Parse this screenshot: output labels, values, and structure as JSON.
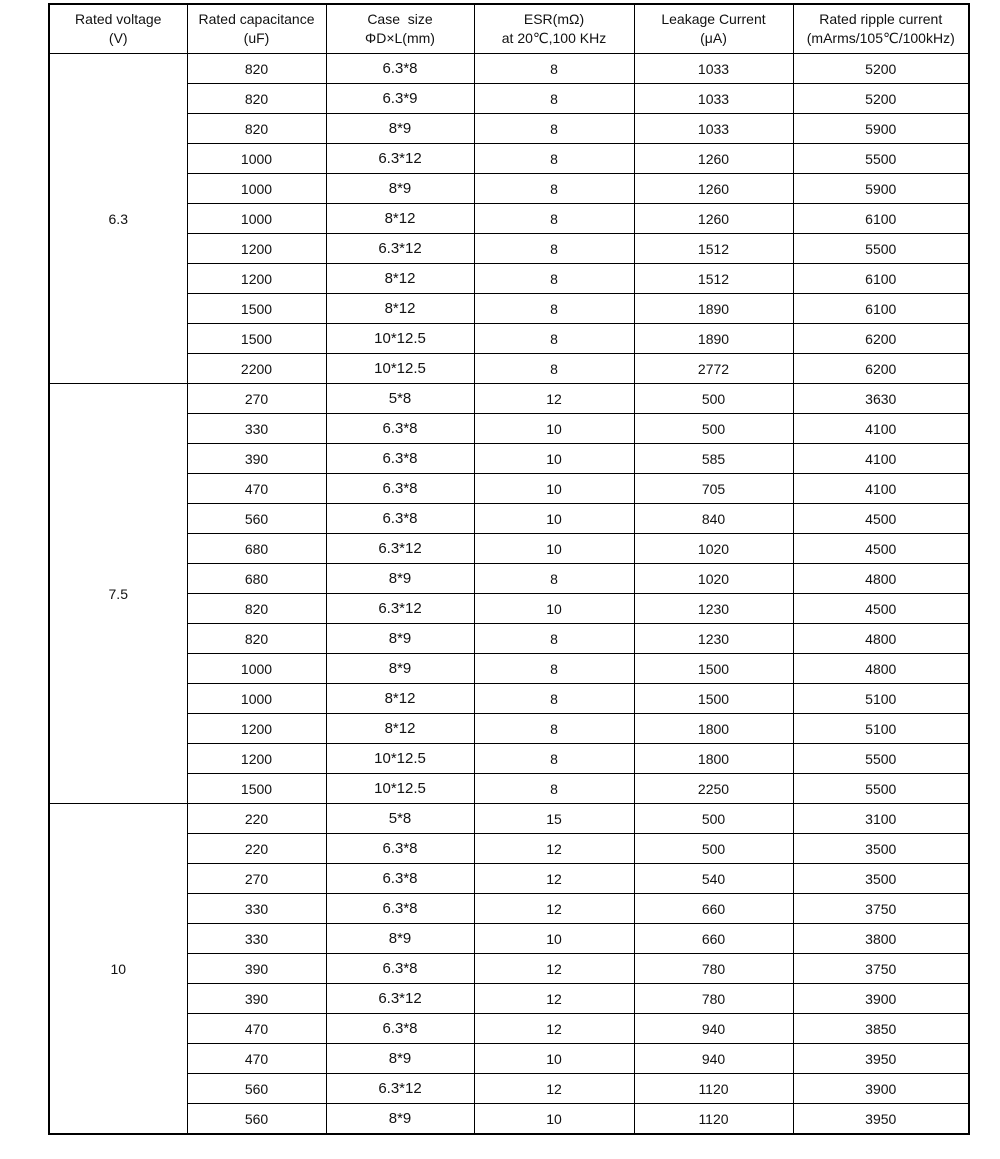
{
  "header": [
    [
      "Rated voltage",
      "(V)"
    ],
    [
      "Rated capacitance",
      "(uF)"
    ],
    [
      "Case  size",
      "ΦD×L(mm)"
    ],
    [
      "ESR(mΩ)",
      "at 20℃,100 KHz"
    ],
    [
      "Leakage Current",
      "(μA)"
    ],
    [
      "Rated ripple current",
      "(mArms/105℃/100kHz)"
    ]
  ],
  "groups": [
    {
      "voltage": "6.3",
      "rows": [
        [
          "820",
          "6.3*8",
          "8",
          "1033",
          "5200"
        ],
        [
          "820",
          "6.3*9",
          "8",
          "1033",
          "5200"
        ],
        [
          "820",
          "8*9",
          "8",
          "1033",
          "5900"
        ],
        [
          "1000",
          "6.3*12",
          "8",
          "1260",
          "5500"
        ],
        [
          "1000",
          "8*9",
          "8",
          "1260",
          "5900"
        ],
        [
          "1000",
          "8*12",
          "8",
          "1260",
          "6100"
        ],
        [
          "1200",
          "6.3*12",
          "8",
          "1512",
          "5500"
        ],
        [
          "1200",
          "8*12",
          "8",
          "1512",
          "6100"
        ],
        [
          "1500",
          "8*12",
          "8",
          "1890",
          "6100"
        ],
        [
          "1500",
          "10*12.5",
          "8",
          "1890",
          "6200"
        ],
        [
          "2200",
          "10*12.5",
          "8",
          "2772",
          "6200"
        ]
      ]
    },
    {
      "voltage": "7.5",
      "rows": [
        [
          "270",
          "5*8",
          "12",
          "500",
          "3630"
        ],
        [
          "330",
          "6.3*8",
          "10",
          "500",
          "4100"
        ],
        [
          "390",
          "6.3*8",
          "10",
          "585",
          "4100"
        ],
        [
          "470",
          "6.3*8",
          "10",
          "705",
          "4100"
        ],
        [
          "560",
          "6.3*8",
          "10",
          "840",
          "4500"
        ],
        [
          "680",
          "6.3*12",
          "10",
          "1020",
          "4500"
        ],
        [
          "680",
          "8*9",
          "8",
          "1020",
          "4800"
        ],
        [
          "820",
          "6.3*12",
          "10",
          "1230",
          "4500"
        ],
        [
          "820",
          "8*9",
          "8",
          "1230",
          "4800"
        ],
        [
          "1000",
          "8*9",
          "8",
          "1500",
          "4800"
        ],
        [
          "1000",
          "8*12",
          "8",
          "1500",
          "5100"
        ],
        [
          "1200",
          "8*12",
          "8",
          "1800",
          "5100"
        ],
        [
          "1200",
          "10*12.5",
          "8",
          "1800",
          "5500"
        ],
        [
          "1500",
          "10*12.5",
          "8",
          "2250",
          "5500"
        ]
      ]
    },
    {
      "voltage": "10",
      "rows": [
        [
          "220",
          "5*8",
          "15",
          "500",
          "3100"
        ],
        [
          "220",
          "6.3*8",
          "12",
          "500",
          "3500"
        ],
        [
          "270",
          "6.3*8",
          "12",
          "540",
          "3500"
        ],
        [
          "330",
          "6.3*8",
          "12",
          "660",
          "3750"
        ],
        [
          "330",
          "8*9",
          "10",
          "660",
          "3800"
        ],
        [
          "390",
          "6.3*8",
          "12",
          "780",
          "3750"
        ],
        [
          "390",
          "6.3*12",
          "12",
          "780",
          "3900"
        ],
        [
          "470",
          "6.3*8",
          "12",
          "940",
          "3850"
        ],
        [
          "470",
          "8*9",
          "10",
          "940",
          "3950"
        ],
        [
          "560",
          "6.3*12",
          "12",
          "1120",
          "3900"
        ],
        [
          "560",
          "8*9",
          "10",
          "1120",
          "3950"
        ]
      ]
    }
  ]
}
